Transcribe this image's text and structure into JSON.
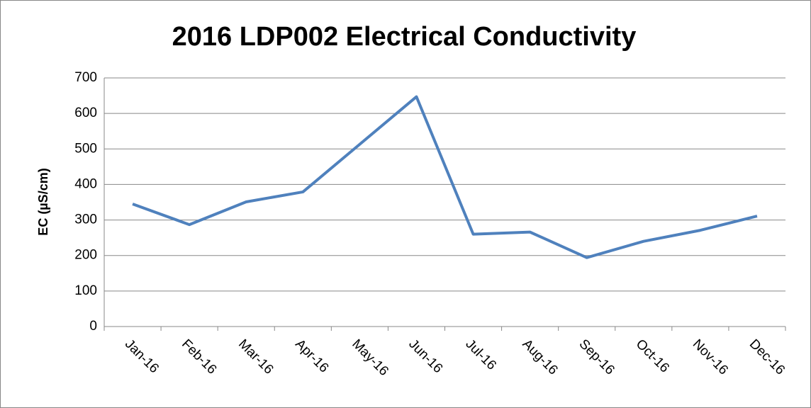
{
  "chart_data": {
    "type": "line",
    "title": "2016 LDP002 Electrical Conductivity",
    "y_label": "EC (µS/cm)",
    "categories": [
      "Jan-16",
      "Feb-16",
      "Mar-16",
      "Apr-16",
      "May-16",
      "Jun-16",
      "Jul-16",
      "Aug-16",
      "Sep-16",
      "Oct-16",
      "Nov-16",
      "Dec-16"
    ],
    "series": [
      {
        "name": "EC",
        "color": "#4f81bd",
        "values": [
          345,
          287,
          351,
          379,
          513,
          647,
          260,
          266,
          194,
          240,
          271,
          311
        ]
      }
    ],
    "ylim": [
      0,
      700
    ],
    "yticks": [
      0,
      100,
      200,
      300,
      400,
      500,
      600,
      700
    ],
    "grid": true
  }
}
